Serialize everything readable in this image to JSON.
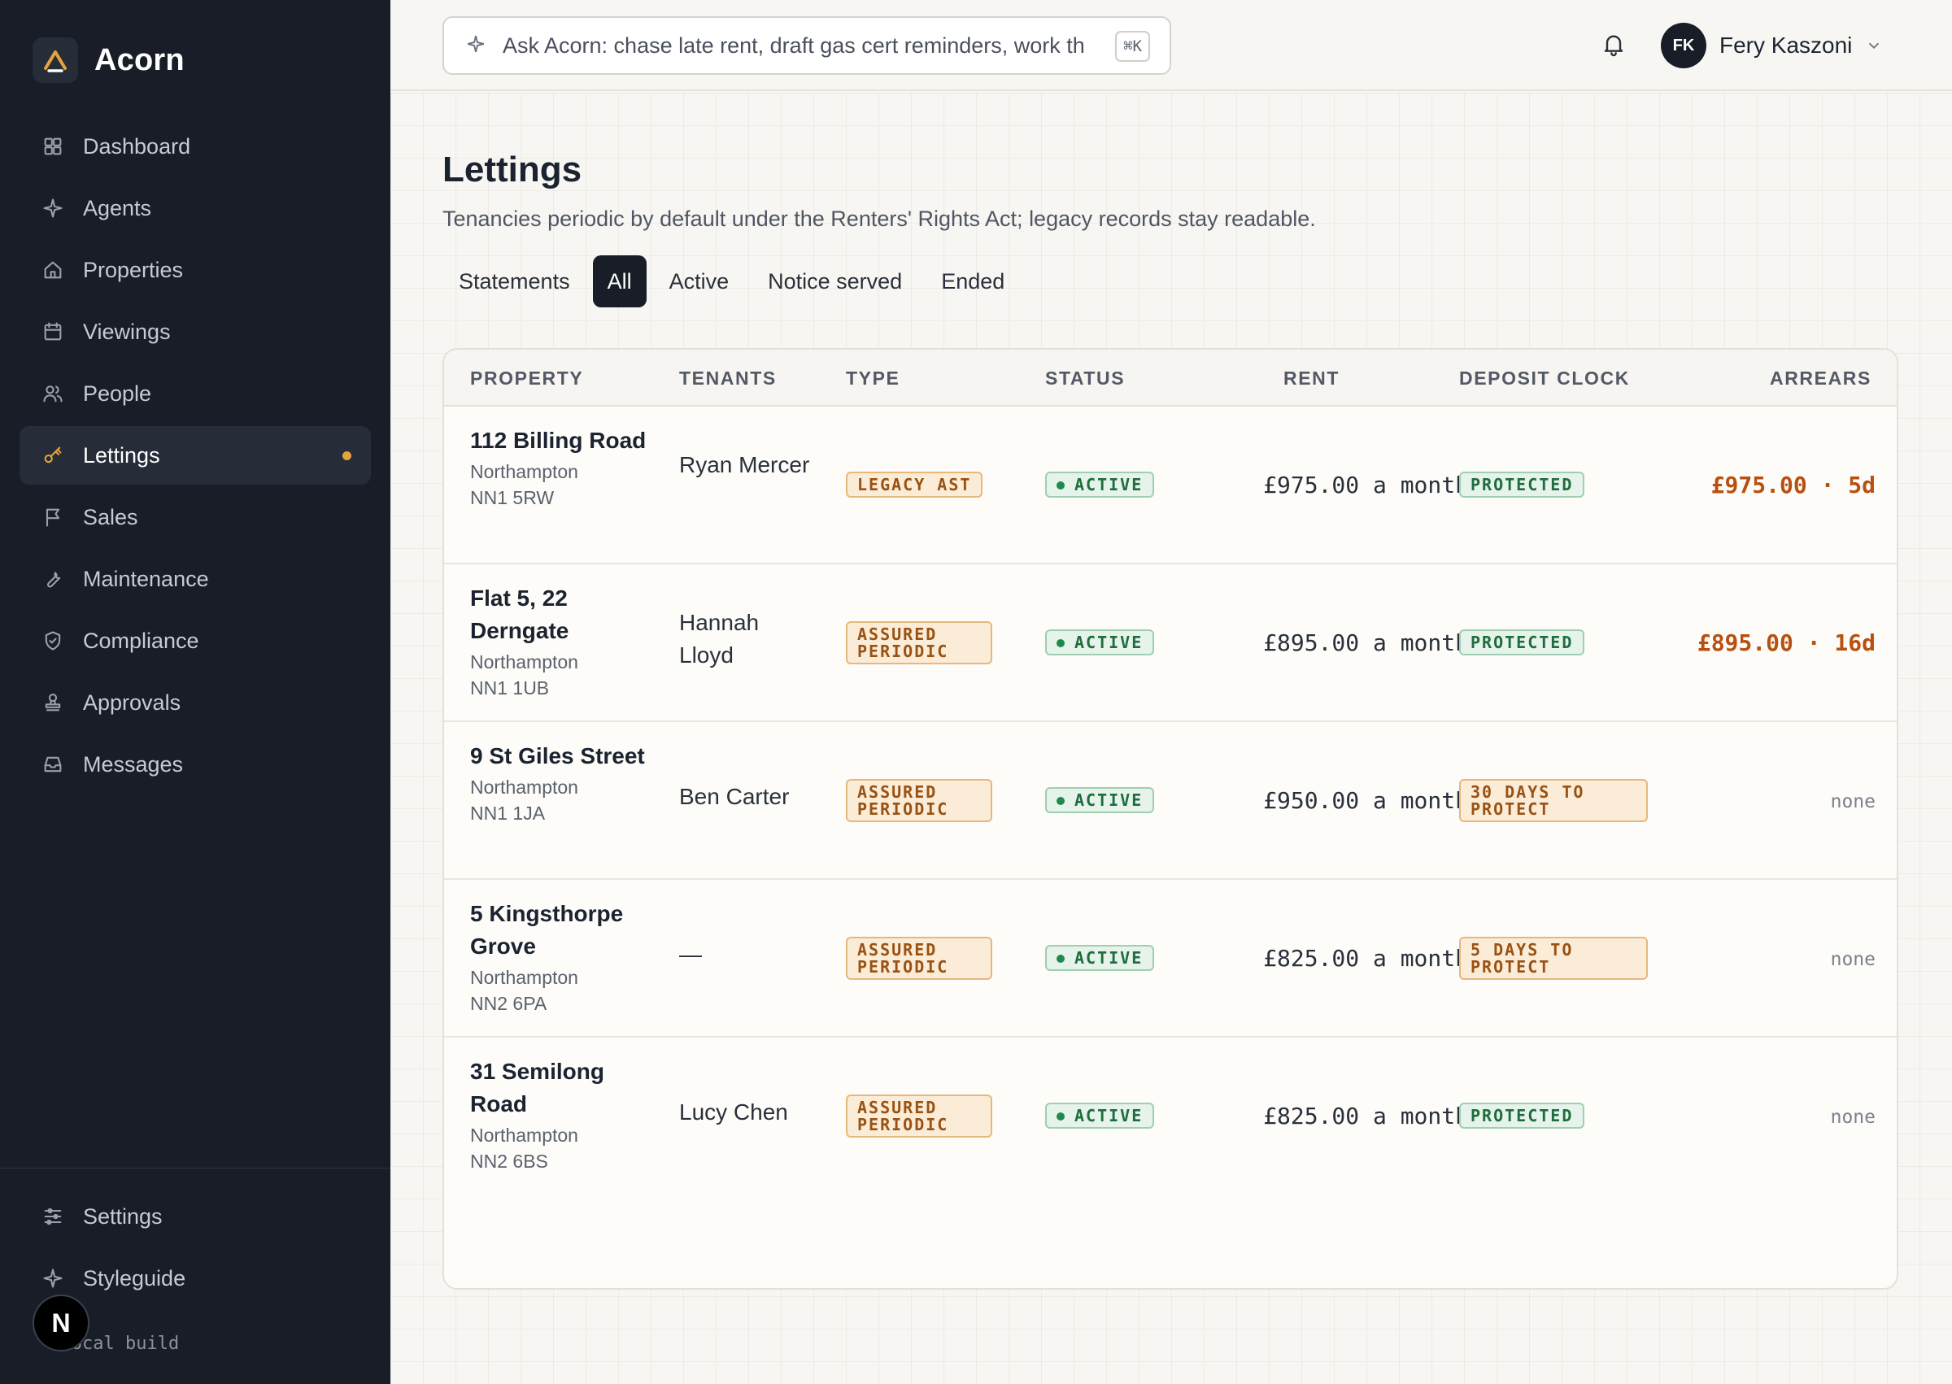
{
  "app": {
    "name": "Acorn"
  },
  "sidebar": {
    "items": [
      {
        "label": "Dashboard",
        "icon": "grid-icon"
      },
      {
        "label": "Agents",
        "icon": "sparkle-icon"
      },
      {
        "label": "Properties",
        "icon": "home-icon"
      },
      {
        "label": "Viewings",
        "icon": "calendar-icon"
      },
      {
        "label": "People",
        "icon": "users-icon"
      },
      {
        "label": "Lettings",
        "icon": "key-icon",
        "active": true
      },
      {
        "label": "Sales",
        "icon": "flag-icon"
      },
      {
        "label": "Maintenance",
        "icon": "wrench-icon"
      },
      {
        "label": "Compliance",
        "icon": "shield-icon"
      },
      {
        "label": "Approvals",
        "icon": "stamp-icon"
      },
      {
        "label": "Messages",
        "icon": "inbox-icon"
      }
    ],
    "bottom_items": [
      {
        "label": "Settings",
        "icon": "sliders-icon"
      },
      {
        "label": "Styleguide",
        "icon": "sparkle-icon"
      }
    ],
    "footer_note": "· local build",
    "n_badge": "N"
  },
  "topbar": {
    "search_placeholder": "Ask Acorn: chase late rent, draft gas cert reminders, work th",
    "shortcut": "⌘K",
    "user": {
      "initials": "FK",
      "name": "Fery Kaszoni"
    }
  },
  "page": {
    "title": "Lettings",
    "subtitle": "Tenancies periodic by default under the Renters' Rights Act; legacy records stay readable.",
    "tabs": [
      {
        "label": "Statements"
      },
      {
        "label": "All",
        "active": true
      },
      {
        "label": "Active"
      },
      {
        "label": "Notice served"
      },
      {
        "label": "Ended"
      }
    ]
  },
  "table": {
    "headers": {
      "property": "PROPERTY",
      "tenants": "TENANTS",
      "type": "TYPE",
      "status": "STATUS",
      "rent": "RENT",
      "deposit": "DEPOSIT CLOCK",
      "arrears": "ARREARS"
    },
    "rows": [
      {
        "name": "112 Billing Road",
        "town": "Northampton",
        "postcode": "NN1 5RW",
        "tenants": "Ryan Mercer",
        "type": "LEGACY AST",
        "status": "ACTIVE",
        "rent": "£975.00 a month",
        "deposit": "PROTECTED",
        "deposit_state": "ok",
        "arrears": "£975.00 · 5d",
        "arrears_state": "due"
      },
      {
        "name": "Flat 5, 22 Derngate",
        "town": "Northampton",
        "postcode": "NN1 1UB",
        "tenants": "Hannah Lloyd",
        "type": "ASSURED PERIODIC",
        "status": "ACTIVE",
        "rent": "£895.00 a month",
        "deposit": "PROTECTED",
        "deposit_state": "ok",
        "arrears": "£895.00 · 16d",
        "arrears_state": "due"
      },
      {
        "name": "9 St Giles Street",
        "town": "Northampton",
        "postcode": "NN1 1JA",
        "tenants": "Ben Carter",
        "type": "ASSURED PERIODIC",
        "status": "ACTIVE",
        "rent": "£950.00 a month",
        "deposit": "30 DAYS TO PROTECT",
        "deposit_state": "warn",
        "arrears": "none",
        "arrears_state": "none"
      },
      {
        "name": "5 Kingsthorpe Grove",
        "town": "Northampton",
        "postcode": "NN2 6PA",
        "tenants": "—",
        "type": "ASSURED PERIODIC",
        "status": "ACTIVE",
        "rent": "£825.00 a month",
        "deposit": "5 DAYS TO PROTECT",
        "deposit_state": "warn",
        "arrears": "none",
        "arrears_state": "none"
      },
      {
        "name": "31 Semilong Road",
        "town": "Northampton",
        "postcode": "NN2 6BS",
        "tenants": "Lucy Chen",
        "type": "ASSURED PERIODIC",
        "status": "ACTIVE",
        "rent": "£825.00 a month",
        "deposit": "PROTECTED",
        "deposit_state": "ok",
        "arrears": "none",
        "arrears_state": "none"
      }
    ]
  },
  "colors": {
    "sidebar_bg": "#181d27",
    "accent": "#e6a23c",
    "arrears": "#b8500f",
    "active_green": "#1f8a4c"
  }
}
